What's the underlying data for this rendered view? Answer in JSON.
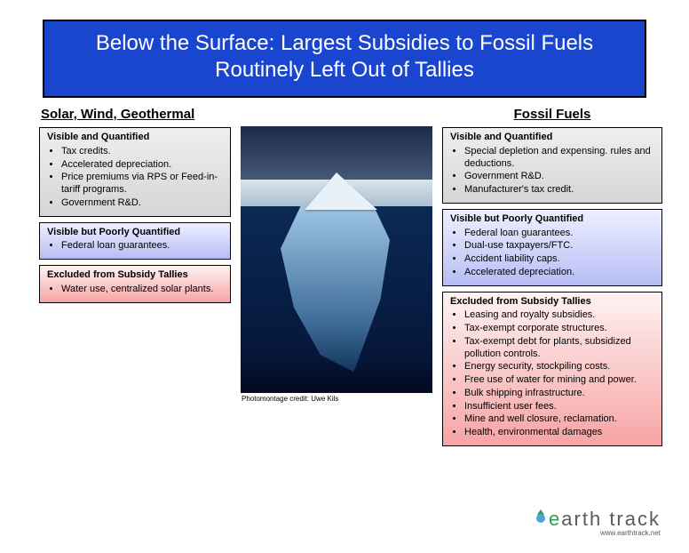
{
  "title": "Below the Surface:  Largest Subsidies to Fossil Fuels Routinely Left Out of Tallies",
  "left": {
    "heading": "Solar, Wind, Geothermal",
    "boxes": [
      {
        "style": "grey",
        "title": "Visible and Quantified",
        "items": [
          "Tax credits.",
          "Accelerated depreciation.",
          "Price premiums via RPS or Feed-in-tariff programs.",
          "Government R&D."
        ]
      },
      {
        "style": "blue",
        "title": "Visible but Poorly Quantified",
        "items": [
          "Federal loan guarantees."
        ]
      },
      {
        "style": "red",
        "title": "Excluded from Subsidy Tallies",
        "items": [
          "Water use, centralized solar plants."
        ]
      }
    ]
  },
  "right": {
    "heading": "Fossil Fuels",
    "boxes": [
      {
        "style": "grey",
        "title": "Visible and Quantified",
        "items": [
          "Special depletion and expensing. rules and deductions.",
          "Government R&D.",
          "Manufacturer's tax credit."
        ]
      },
      {
        "style": "blue",
        "title": "Visible but Poorly Quantified",
        "items": [
          "Federal loan guarantees.",
          "Dual-use taxpayers/FTC.",
          "Accident liability caps.",
          "Accelerated depreciation."
        ]
      },
      {
        "style": "red",
        "title": "Excluded from Subsidy Tallies",
        "items": [
          "Leasing and royalty subsidies.",
          "Tax-exempt corporate structures.",
          "Tax-exempt debt for plants, subsidized pollution controls.",
          "Energy security, stockpiling costs.",
          "Free use of water for mining and power.",
          "Bulk shipping infrastructure.",
          "Insufficient user fees.",
          "Mine and well closure, reclamation.",
          "Health, environmental damages"
        ]
      }
    ]
  },
  "image_credit": "Photomontage credit: Uwe Kils",
  "logo": {
    "text_main": "arth track",
    "text_e": "e",
    "sub": "www.earthtrack.net"
  },
  "colors": {
    "banner_bg": "#1a46cf",
    "grey_from": "#efefef",
    "grey_to": "#d5d5d5",
    "blue_from": "#eef0ff",
    "blue_to": "#b7bdf5",
    "red_from": "#fff2f2",
    "red_to": "#f6a4a4"
  }
}
